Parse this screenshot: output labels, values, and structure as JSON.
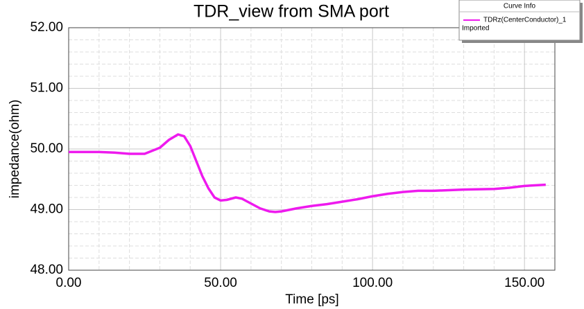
{
  "chart_data": {
    "type": "line",
    "title": "TDR_view from SMA port",
    "x_label": "Time [ps]",
    "y_label": "impedance(ohm)",
    "legend_title": "Curve Info",
    "legend_note": "Imported",
    "legend_position": "top-right",
    "x": [
      0,
      10,
      15,
      20,
      25,
      30,
      33,
      36,
      38,
      40,
      42,
      44,
      46,
      48,
      50,
      52,
      55,
      57,
      60,
      63,
      66,
      68,
      70,
      75,
      80,
      85,
      90,
      95,
      100,
      105,
      110,
      115,
      120,
      130,
      140,
      145,
      150,
      157
    ],
    "series": [
      {
        "name": "TDRz(CenterConductor)_1",
        "color": "#ee1aee",
        "values": [
          49.95,
          49.95,
          49.94,
          49.92,
          49.92,
          50.02,
          50.15,
          50.24,
          50.21,
          50.05,
          49.8,
          49.55,
          49.35,
          49.2,
          49.15,
          49.16,
          49.2,
          49.18,
          49.1,
          49.02,
          48.97,
          48.96,
          48.97,
          49.02,
          49.06,
          49.09,
          49.13,
          49.17,
          49.22,
          49.26,
          49.29,
          49.31,
          49.31,
          49.33,
          49.34,
          49.36,
          49.39,
          49.41
        ]
      }
    ],
    "xlim": [
      0,
      160
    ],
    "ylim": [
      48,
      52
    ],
    "xticks": [
      {
        "value": 0,
        "label": "0.00"
      },
      {
        "value": 50,
        "label": "50.00"
      },
      {
        "value": 100,
        "label": "100.00"
      },
      {
        "value": 150,
        "label": "150.00"
      }
    ],
    "yticks": [
      {
        "value": 48,
        "label": "48.00"
      },
      {
        "value": 49,
        "label": "49.00"
      },
      {
        "value": 50,
        "label": "50.00"
      },
      {
        "value": 51,
        "label": "51.00"
      },
      {
        "value": 52,
        "label": "52.00"
      }
    ],
    "minor_xticks": [
      10,
      20,
      30,
      40,
      60,
      70,
      80,
      90,
      110,
      120,
      130,
      140
    ],
    "minor_yticks": [
      48.2,
      48.4,
      48.6,
      48.8,
      49.2,
      49.4,
      49.6,
      49.8,
      50.2,
      50.4,
      50.6,
      50.8,
      51.2,
      51.4,
      51.6,
      51.8
    ],
    "grid": true
  }
}
